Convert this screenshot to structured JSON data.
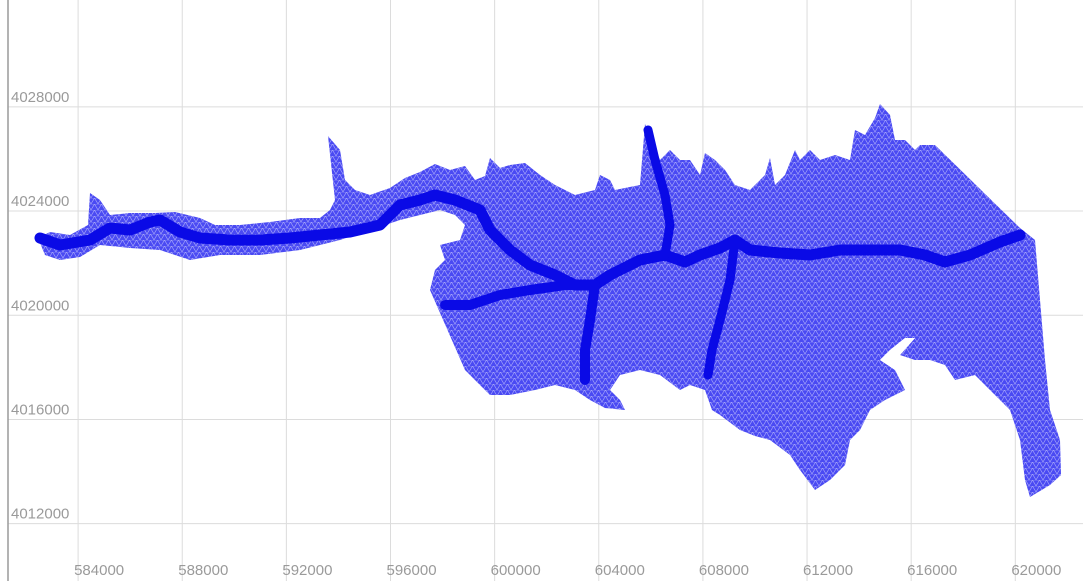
{
  "chart_data": {
    "type": "mesh",
    "xlim": [
      581000,
      622600
    ],
    "ylim": [
      4009800,
      4032100
    ],
    "xticks": [
      584000,
      588000,
      592000,
      596000,
      600000,
      604000,
      608000,
      612000,
      616000,
      620000
    ],
    "yticks": [
      4012000,
      4016000,
      4020000,
      4024000,
      4028000
    ],
    "grid": true,
    "color": "#4a4af3",
    "channel_color": "#0a0ae6"
  }
}
